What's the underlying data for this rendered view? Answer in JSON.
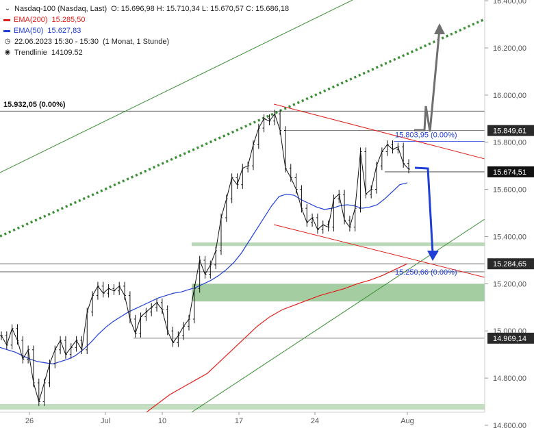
{
  "legend": {
    "instrument": "Nasdaq-100 (Nasdaq, Last)",
    "ohlc": "O: 15.696,98  H: 15.710,34  L: 15.670,57  C: 15.686,18",
    "ema200_label": "EMA(200)",
    "ema200_value": "15.285,50",
    "ema200_color": "#e0201c",
    "ema50_label": "EMA(50)",
    "ema50_value": "15.627,83",
    "ema50_color": "#1f3fd6",
    "date_range": "22.06.2023 15:30 - 15:30",
    "period": "(1 Monat, 1 Stunde)",
    "trendline_label": "Trendlinie",
    "trendline_value": "14109.52",
    "clock_icon": "clock-icon",
    "target_icon": "target-icon"
  },
  "chart_data": {
    "type": "line",
    "title": "Nasdaq-100 (Nasdaq, Last)",
    "y_axis": {
      "range": [
        14600,
        16450
      ],
      "ticks": [
        {
          "value": 16400,
          "label": "16.400,00"
        },
        {
          "value": 16200,
          "label": "16.200,00"
        },
        {
          "value": 16000,
          "label": "16.000,00"
        },
        {
          "value": 15800,
          "label": "15.800,00"
        },
        {
          "value": 15600,
          "label": "15.600,00"
        },
        {
          "value": 15400,
          "label": "15.400,00"
        },
        {
          "value": 15200,
          "label": "15.200,00"
        },
        {
          "value": 15000,
          "label": "15.000,00"
        },
        {
          "value": 14800,
          "label": "14.800,00"
        },
        {
          "value": 14600,
          "label": "14.600,00"
        }
      ]
    },
    "x_axis": {
      "ticks": [
        "26",
        "Jul",
        "10",
        "17",
        "24",
        "Aug"
      ]
    },
    "price_markers": [
      {
        "value": 15849.61,
        "label": "15.849,61",
        "style": "dark"
      },
      {
        "value": 15674.51,
        "label": "15.674,51",
        "style": "black"
      },
      {
        "value": 15284.65,
        "label": "15.284,65",
        "style": "dark"
      },
      {
        "value": 15250.66,
        "label": "15.250,66",
        "style": "dark-hidden"
      },
      {
        "value": 14969.14,
        "label": "14.969,14",
        "style": "dark"
      }
    ],
    "annotations": [
      {
        "value": 15932.05,
        "text": "15.932,05 (0.00%)"
      },
      {
        "value": 15803.95,
        "text": "15.803,95 (0.00%)"
      },
      {
        "value": 15250.66,
        "text": "15.250,66 (0.00%)"
      }
    ],
    "zones": [
      {
        "from": 15125,
        "to": 15200
      },
      {
        "from": 15360,
        "to": 15375
      },
      {
        "from": 14666,
        "to": 14690
      }
    ],
    "scenarios": [
      {
        "name": "up",
        "target": 16280,
        "color": "#6f6f6f"
      },
      {
        "name": "down",
        "target": 15250,
        "color": "#1f3fd6"
      }
    ],
    "price_series": [
      14980,
      14940,
      15010,
      14960,
      14880,
      14920,
      14780,
      14700,
      14780,
      14860,
      14920,
      14960,
      14900,
      14930,
      14960,
      14920,
      15080,
      15150,
      15190,
      15160,
      15180,
      15170,
      15190,
      15150,
      15050,
      14990,
      15060,
      15080,
      15100,
      15120,
      15090,
      15000,
      14950,
      14980,
      15020,
      15050,
      15180,
      15300,
      15240,
      15280,
      15340,
      15480,
      15560,
      15650,
      15620,
      15690,
      15700,
      15790,
      15860,
      15900,
      15890,
      15920,
      15850,
      15690,
      15650,
      15600,
      15520,
      15460,
      15480,
      15430,
      15450,
      15440,
      15560,
      15580,
      15470,
      15440,
      15520,
      15760,
      15580,
      15600,
      15700,
      15760,
      15790,
      15770,
      15780,
      15710,
      15686
    ],
    "ema50_series": [
      14930,
      14920,
      14910,
      14895,
      14880,
      14870,
      14865,
      14860,
      14870,
      14880,
      14895,
      14920,
      14950,
      14985,
      15015,
      15040,
      15060,
      15080,
      15095,
      15110,
      15125,
      15140,
      15150,
      15160,
      15165,
      15175,
      15185,
      15200,
      15215,
      15235,
      15260,
      15290,
      15330,
      15380,
      15430,
      15480,
      15530,
      15570,
      15580,
      15575,
      15555,
      15540,
      15525,
      15515,
      15520,
      15530,
      15535,
      15530,
      15520,
      15525,
      15535,
      15560,
      15590,
      15620,
      15628
    ],
    "ema200_series": [
      14580,
      14610,
      14650,
      14690,
      14730,
      14760,
      14790,
      14820,
      14870,
      14920,
      14970,
      15020,
      15060,
      15090,
      15110,
      15130,
      15150,
      15165,
      15180,
      15200,
      15215,
      15235,
      15260,
      15285
    ]
  }
}
